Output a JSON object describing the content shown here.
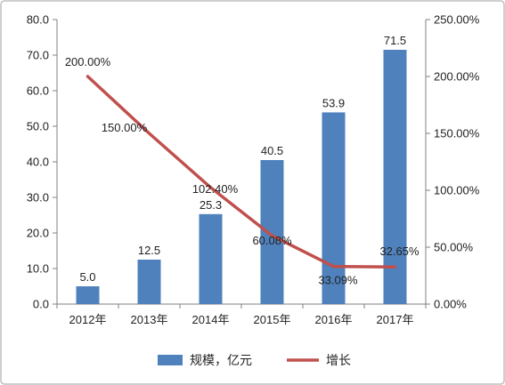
{
  "chart_data": {
    "type": "bar+line",
    "categories": [
      "2012年",
      "2013年",
      "2014年",
      "2015年",
      "2016年",
      "2017年"
    ],
    "series": [
      {
        "name": "规模，亿元",
        "type": "bar",
        "axis": "left",
        "values": [
          5.0,
          12.5,
          25.3,
          40.5,
          53.9,
          71.5
        ],
        "labels": [
          "5.0",
          "12.5",
          "25.3",
          "40.5",
          "53.9",
          "71.5"
        ],
        "color": "#4f81bd"
      },
      {
        "name": "增长",
        "type": "line",
        "axis": "right",
        "values": [
          200.0,
          150.0,
          102.4,
          60.08,
          33.09,
          32.65
        ],
        "labels": [
          "200.00%",
          "150.00%",
          "102.40%",
          "60.08%",
          "33.09%",
          "32.65%"
        ],
        "color": "#c0504d"
      }
    ],
    "y_left": {
      "ylim": [
        0,
        80
      ],
      "ticks": [
        "0.0",
        "10.0",
        "20.0",
        "30.0",
        "40.0",
        "50.0",
        "60.0",
        "70.0",
        "80.0"
      ]
    },
    "y_right": {
      "ylim": [
        0,
        250
      ],
      "ticks": [
        "0.00%",
        "50.00%",
        "100.00%",
        "150.00%",
        "200.00%",
        "250.00%"
      ]
    },
    "legend_position": "bottom",
    "grid": false,
    "title": "",
    "xlabel": "",
    "ylabel": ""
  }
}
